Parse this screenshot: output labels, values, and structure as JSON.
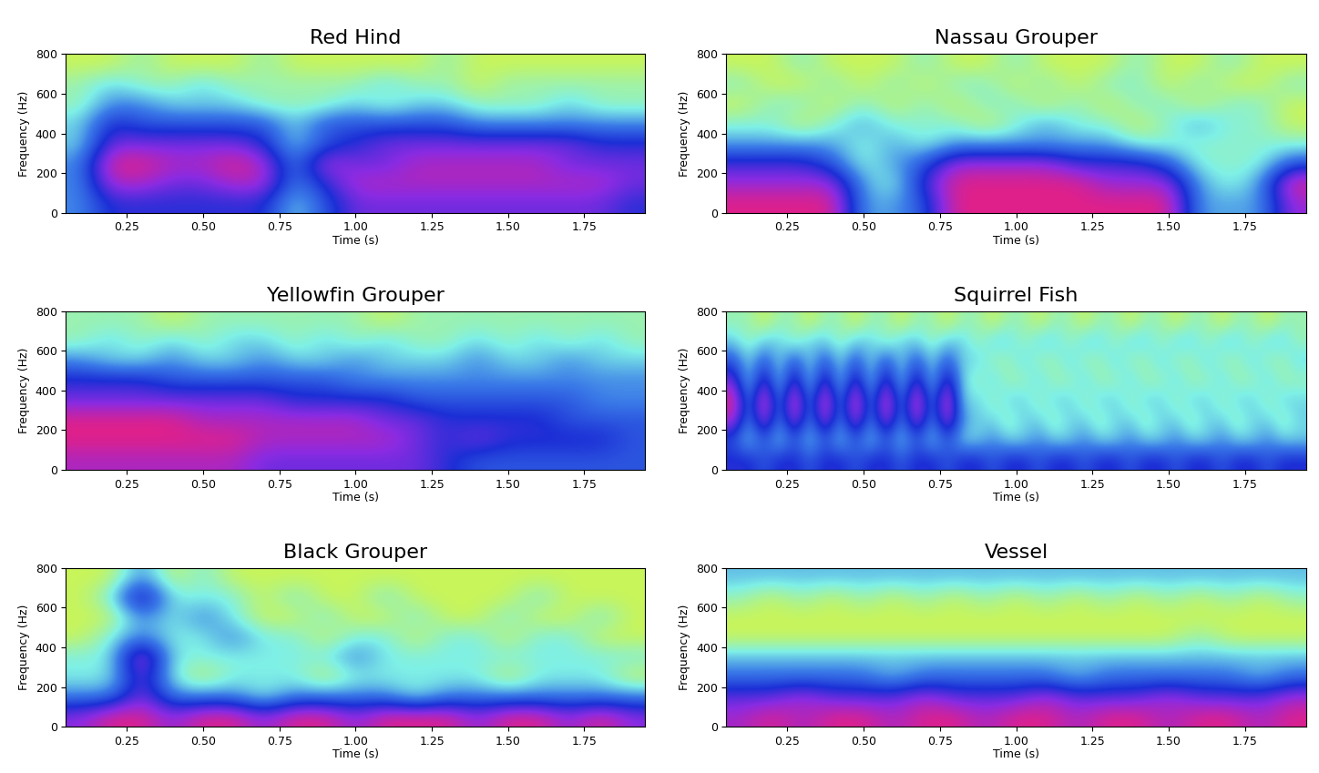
{
  "chart_data": [
    {
      "type": "heatmap",
      "title": "Red Hind",
      "x_label": "Time (s)",
      "y_label": "Frequency (Hz)",
      "xlim": [
        0.05,
        1.95
      ],
      "ylim": [
        0,
        800
      ],
      "xticks": [
        0.25,
        {
          "value": 0.5,
          "label": "0.50"
        },
        0.75,
        {
          "value": 1,
          "label": "1.00"
        },
        1.25,
        {
          "value": 1.5,
          "label": "1.50"
        },
        1.75
      ],
      "yticks": [
        0,
        200,
        400,
        600,
        800
      ],
      "cells": [
        [
          4,
          6,
          6,
          6,
          6,
          6,
          6,
          3,
          5,
          7,
          7,
          7,
          7,
          7,
          7,
          7,
          7,
          7,
          6
        ],
        [
          4,
          8,
          8,
          7,
          7,
          8,
          8,
          4,
          6,
          8,
          8,
          8,
          8,
          8,
          8,
          8,
          8,
          8,
          7
        ],
        [
          4,
          9,
          9,
          8,
          8,
          9,
          8,
          4,
          8,
          7,
          7,
          8,
          8,
          8,
          8,
          8,
          7,
          7,
          7
        ],
        [
          3,
          7,
          7,
          7,
          7,
          7,
          6,
          3,
          5,
          6,
          7,
          7,
          7,
          7,
          7,
          7,
          7,
          6,
          6
        ],
        [
          3,
          6,
          5,
          5,
          5,
          5,
          5,
          3,
          5,
          5,
          5,
          5,
          5,
          4,
          4,
          4,
          4,
          4,
          4
        ],
        [
          2,
          4,
          4,
          3,
          3,
          3,
          2,
          2,
          2,
          3,
          2,
          3,
          3,
          2,
          2,
          2,
          3,
          2,
          2
        ],
        [
          2,
          3,
          2,
          2,
          3,
          2,
          2,
          2,
          2,
          2,
          3,
          2,
          2,
          1,
          2,
          2,
          2,
          2,
          2
        ],
        [
          1,
          1,
          2,
          1,
          1,
          1,
          2,
          1,
          1,
          1,
          1,
          1,
          2,
          1,
          1,
          1,
          1,
          1,
          1
        ]
      ]
    },
    {
      "type": "heatmap",
      "title": "Nassau Grouper",
      "x_label": "Time (s)",
      "y_label": "Frequency (Hz)",
      "xlim": [
        0.05,
        1.95
      ],
      "ylim": [
        0,
        800
      ],
      "xticks": [
        0.25,
        {
          "value": 0.5,
          "label": "0.50"
        },
        0.75,
        {
          "value": 1,
          "label": "1.00"
        },
        1.25,
        {
          "value": 1.5,
          "label": "1.50"
        },
        1.75
      ],
      "yticks": [
        0,
        200,
        400,
        600,
        800
      ],
      "cells": [
        [
          8,
          8,
          8,
          8,
          4,
          4,
          5,
          8,
          8,
          8,
          8,
          8,
          8,
          8,
          8,
          4,
          4,
          4,
          7
        ],
        [
          7,
          7,
          7,
          7,
          4,
          3,
          6,
          8,
          8,
          8,
          8,
          8,
          7,
          7,
          7,
          4,
          3,
          4,
          8
        ],
        [
          6,
          6,
          6,
          5,
          3,
          4,
          5,
          7,
          7,
          7,
          7,
          6,
          6,
          6,
          5,
          3,
          3,
          3,
          5
        ],
        [
          4,
          4,
          4,
          4,
          3,
          4,
          3,
          4,
          4,
          4,
          4,
          4,
          4,
          3,
          3,
          3,
          3,
          3,
          3
        ],
        [
          3,
          3,
          2,
          3,
          4,
          3,
          3,
          3,
          2,
          3,
          4,
          3,
          3,
          2,
          3,
          4,
          3,
          3,
          2
        ],
        [
          2,
          3,
          3,
          2,
          3,
          2,
          3,
          2,
          3,
          3,
          2,
          3,
          2,
          3,
          3,
          2,
          3,
          3,
          2
        ],
        [
          3,
          2,
          2,
          3,
          2,
          3,
          2,
          3,
          3,
          2,
          3,
          2,
          3,
          3,
          2,
          3,
          2,
          2,
          3
        ],
        [
          2,
          2,
          3,
          2,
          2,
          2,
          3,
          2,
          2,
          3,
          2,
          2,
          2,
          3,
          2,
          2,
          3,
          2,
          2
        ]
      ]
    },
    {
      "type": "heatmap",
      "title": "Yellowfin Grouper",
      "x_label": "Time (s)",
      "y_label": "Frequency (Hz)",
      "xlim": [
        0.05,
        1.95
      ],
      "ylim": [
        0,
        800
      ],
      "xticks": [
        0.25,
        {
          "value": 0.5,
          "label": "0.50"
        },
        0.75,
        {
          "value": 1,
          "label": "1.00"
        },
        1.25,
        {
          "value": 1.5,
          "label": "1.50"
        },
        1.75
      ],
      "yticks": [
        0,
        200,
        400,
        600,
        800
      ],
      "cells": [
        [
          8,
          8,
          8,
          8,
          8,
          8,
          7,
          7,
          7,
          7,
          7,
          7,
          6,
          5,
          5,
          5,
          5,
          5,
          5
        ],
        [
          9,
          9,
          9,
          9,
          9,
          9,
          8,
          8,
          8,
          8,
          8,
          7,
          6,
          7,
          6,
          6,
          6,
          6,
          5
        ],
        [
          9,
          9,
          9,
          9,
          8,
          8,
          8,
          8,
          8,
          8,
          7,
          7,
          6,
          6,
          6,
          6,
          5,
          5,
          5
        ],
        [
          7,
          7,
          7,
          7,
          7,
          7,
          7,
          6,
          6,
          6,
          6,
          5,
          5,
          5,
          5,
          5,
          5,
          4,
          4
        ],
        [
          6,
          6,
          6,
          5,
          5,
          5,
          5,
          5,
          5,
          4,
          4,
          4,
          4,
          4,
          4,
          4,
          4,
          4,
          4
        ],
        [
          4,
          3,
          3,
          4,
          3,
          3,
          4,
          3,
          3,
          4,
          3,
          3,
          3,
          4,
          3,
          3,
          4,
          3,
          3
        ],
        [
          2,
          3,
          2,
          3,
          2,
          3,
          3,
          2,
          3,
          2,
          3,
          2,
          2,
          3,
          2,
          3,
          2,
          3,
          2
        ],
        [
          2,
          2,
          2,
          1,
          2,
          2,
          2,
          2,
          2,
          2,
          1,
          2,
          2,
          2,
          2,
          2,
          2,
          2,
          2
        ]
      ]
    },
    {
      "type": "heatmap",
      "title": "Squirrel Fish",
      "x_label": "Time (s)",
      "y_label": "Frequency (Hz)",
      "xlim": [
        0.05,
        1.95
      ],
      "ylim": [
        0,
        800
      ],
      "xticks": [
        0.25,
        {
          "value": 0.5,
          "label": "0.50"
        },
        0.75,
        {
          "value": 1,
          "label": "1.00"
        },
        1.25,
        {
          "value": 1.5,
          "label": "1.50"
        },
        1.75
      ],
      "yticks": [
        0,
        200,
        400,
        600,
        800
      ],
      "cells": [
        [
          6,
          6,
          5,
          6,
          6,
          5,
          6,
          6,
          5,
          6,
          6,
          5,
          6,
          6,
          5,
          6,
          6,
          5,
          6,
          6,
          5,
          6,
          6,
          5,
          6,
          6,
          5,
          6,
          6,
          5,
          6,
          6,
          5,
          6,
          6,
          5,
          6,
          6
        ],
        [
          5,
          3,
          5,
          3,
          5,
          3,
          5,
          3,
          5,
          3,
          5,
          3,
          5,
          3,
          5,
          3,
          3,
          4,
          3,
          3,
          4,
          3,
          3,
          4,
          3,
          3,
          4,
          3,
          3,
          4,
          3,
          3,
          4,
          3,
          3,
          4,
          3,
          3
        ],
        [
          8,
          4,
          8,
          4,
          8,
          4,
          8,
          4,
          8,
          4,
          8,
          4,
          8,
          4,
          8,
          4,
          3,
          3,
          2,
          3,
          3,
          2,
          3,
          3,
          2,
          3,
          3,
          2,
          3,
          3,
          2,
          3,
          3,
          2,
          3,
          3,
          2,
          3
        ],
        [
          9,
          4,
          9,
          4,
          9,
          4,
          9,
          4,
          9,
          4,
          9,
          4,
          9,
          4,
          9,
          3,
          3,
          2,
          3,
          3,
          2,
          3,
          3,
          2,
          3,
          3,
          2,
          3,
          3,
          2,
          3,
          3,
          2,
          3,
          3,
          2,
          3,
          3
        ],
        [
          7,
          3,
          7,
          3,
          7,
          3,
          7,
          3,
          7,
          3,
          7,
          3,
          7,
          3,
          7,
          3,
          2,
          3,
          2,
          2,
          3,
          2,
          2,
          3,
          2,
          2,
          3,
          2,
          2,
          3,
          2,
          2,
          3,
          2,
          2,
          3,
          2,
          2
        ],
        [
          5,
          3,
          5,
          3,
          5,
          3,
          5,
          3,
          5,
          3,
          5,
          3,
          5,
          3,
          5,
          3,
          3,
          2,
          2,
          3,
          2,
          2,
          3,
          2,
          2,
          3,
          2,
          2,
          3,
          2,
          2,
          3,
          2,
          2,
          3,
          2,
          2,
          3
        ],
        [
          3,
          2,
          3,
          3,
          2,
          3,
          3,
          2,
          3,
          3,
          2,
          3,
          3,
          2,
          3,
          3,
          2,
          3,
          3,
          2,
          3,
          3,
          2,
          3,
          3,
          2,
          3,
          3,
          2,
          3,
          3,
          2,
          3,
          3,
          2,
          3,
          3,
          2
        ],
        [
          2,
          2,
          1,
          2,
          2,
          1,
          2,
          2,
          1,
          2,
          2,
          1,
          2,
          2,
          1,
          2,
          2,
          1,
          2,
          2,
          1,
          2,
          2,
          1,
          2,
          2,
          1,
          2,
          2,
          1,
          2,
          2,
          1,
          2,
          2,
          1,
          2,
          2
        ]
      ]
    },
    {
      "type": "heatmap",
      "title": "Black Grouper",
      "x_label": "Time (s)",
      "y_label": "Frequency (Hz)",
      "xlim": [
        0.05,
        1.95
      ],
      "ylim": [
        0,
        800
      ],
      "xticks": [
        0.25,
        {
          "value": 0.5,
          "label": "0.50"
        },
        0.75,
        {
          "value": 1,
          "label": "1.00"
        },
        1.25,
        {
          "value": 1.5,
          "label": "1.50"
        },
        1.75
      ],
      "yticks": [
        0,
        200,
        400,
        600,
        800
      ],
      "cells": [
        [
          5,
          6,
          6,
          5,
          6,
          6,
          5,
          6,
          6,
          5,
          6,
          6,
          6,
          5,
          6,
          6,
          5,
          6,
          5
        ],
        [
          3,
          3,
          5,
          3,
          3,
          3,
          2,
          3,
          3,
          3,
          3,
          2,
          3,
          3,
          3,
          3,
          3,
          3,
          3
        ],
        [
          2,
          2,
          5,
          2,
          1,
          2,
          2,
          2,
          1,
          2,
          2,
          2,
          2,
          2,
          1,
          2,
          2,
          2,
          1
        ],
        [
          2,
          2,
          6,
          2,
          2,
          2,
          2,
          2,
          2,
          3,
          2,
          2,
          2,
          2,
          2,
          2,
          2,
          2,
          2
        ],
        [
          1,
          2,
          3,
          2,
          2,
          3,
          2,
          2,
          1,
          2,
          2,
          1,
          2,
          2,
          1,
          2,
          2,
          1,
          1
        ],
        [
          1,
          1,
          3,
          2,
          3,
          2,
          1,
          1,
          2,
          1,
          1,
          2,
          1,
          1,
          2,
          1,
          1,
          2,
          1
        ],
        [
          1,
          2,
          5,
          2,
          2,
          2,
          1,
          2,
          1,
          1,
          2,
          1,
          1,
          1,
          1,
          2,
          1,
          1,
          1
        ],
        [
          1,
          1,
          3,
          1,
          2,
          1,
          1,
          1,
          1,
          1,
          1,
          1,
          1,
          1,
          1,
          1,
          1,
          1,
          1
        ]
      ]
    },
    {
      "type": "heatmap",
      "title": "Vessel",
      "x_label": "Time (s)",
      "y_label": "Frequency (Hz)",
      "xlim": [
        0.05,
        1.95
      ],
      "ylim": [
        0,
        800
      ],
      "xticks": [
        0.25,
        {
          "value": 0.5,
          "label": "0.50"
        },
        0.75,
        {
          "value": 1,
          "label": "1.00"
        },
        1.25,
        {
          "value": 1.5,
          "label": "1.50"
        },
        1.75
      ],
      "yticks": [
        0,
        200,
        400,
        600,
        800
      ],
      "cells": [
        [
          8,
          9,
          8,
          9,
          9,
          8,
          9,
          9,
          8,
          9,
          9,
          8,
          9,
          9,
          8,
          9,
          9,
          8,
          9
        ],
        [
          7,
          7,
          8,
          7,
          7,
          7,
          8,
          7,
          7,
          7,
          8,
          7,
          7,
          7,
          8,
          7,
          7,
          7,
          8
        ],
        [
          5,
          5,
          5,
          5,
          5,
          4,
          5,
          5,
          5,
          5,
          5,
          4,
          5,
          5,
          5,
          5,
          5,
          4,
          5
        ],
        [
          4,
          4,
          4,
          4,
          4,
          4,
          4,
          4,
          4,
          4,
          4,
          4,
          4,
          4,
          4,
          4,
          4,
          4,
          4
        ],
        [
          2,
          2,
          2,
          2,
          2,
          2,
          2,
          2,
          2,
          2,
          2,
          2,
          2,
          2,
          2,
          3,
          2,
          2,
          2
        ],
        [
          2,
          2,
          2,
          2,
          2,
          2,
          2,
          2,
          2,
          2,
          2,
          2,
          2,
          2,
          2,
          2,
          2,
          2,
          2
        ],
        [
          3,
          2,
          3,
          2,
          3,
          2,
          3,
          2,
          3,
          2,
          3,
          2,
          3,
          2,
          3,
          2,
          3,
          2,
          3
        ],
        [
          4,
          4,
          4,
          4,
          4,
          4,
          4,
          4,
          4,
          4,
          4,
          4,
          4,
          4,
          4,
          4,
          4,
          4,
          4
        ]
      ]
    }
  ]
}
